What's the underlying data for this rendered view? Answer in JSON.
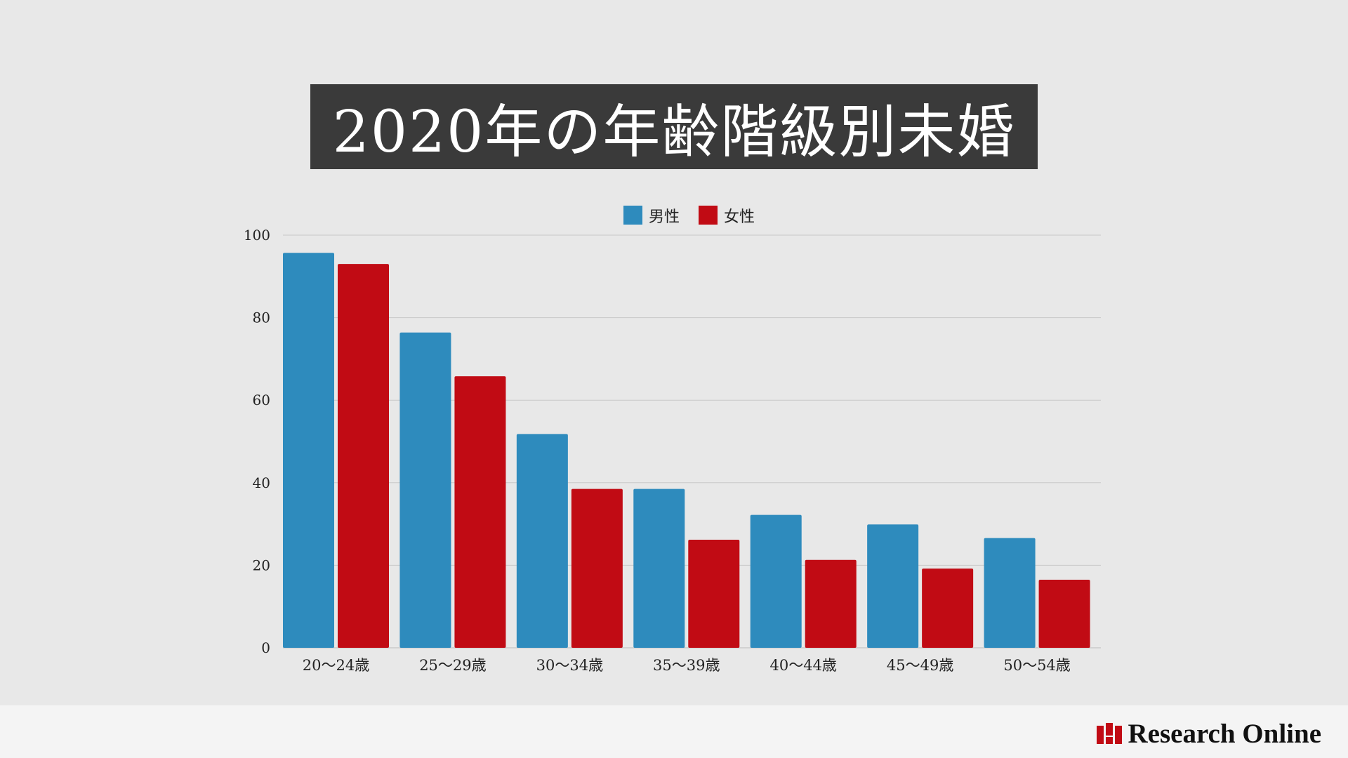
{
  "title": "2020年の年齢階級別未婚",
  "brand": {
    "name": "Research Online"
  },
  "colors": {
    "male": "#2e8bbd",
    "female": "#c10b14",
    "grid": "#c9c9c9",
    "background": "#e8e8e8"
  },
  "chart_data": {
    "type": "bar",
    "categories": [
      "20～24歳",
      "25～29歳",
      "30～34歳",
      "35～39歳",
      "40～44歳",
      "45～49歳",
      "50～54歳"
    ],
    "series": [
      {
        "name": "男性",
        "values": [
          95.7,
          76.4,
          51.8,
          38.5,
          32.2,
          29.9,
          26.6
        ]
      },
      {
        "name": "女性",
        "values": [
          93.0,
          65.8,
          38.5,
          26.2,
          21.3,
          19.2,
          16.5
        ]
      }
    ],
    "ylim": [
      0,
      100
    ],
    "yticks": [
      0,
      20,
      40,
      60,
      80,
      100
    ],
    "grid": true,
    "legend_position": "top-center"
  }
}
